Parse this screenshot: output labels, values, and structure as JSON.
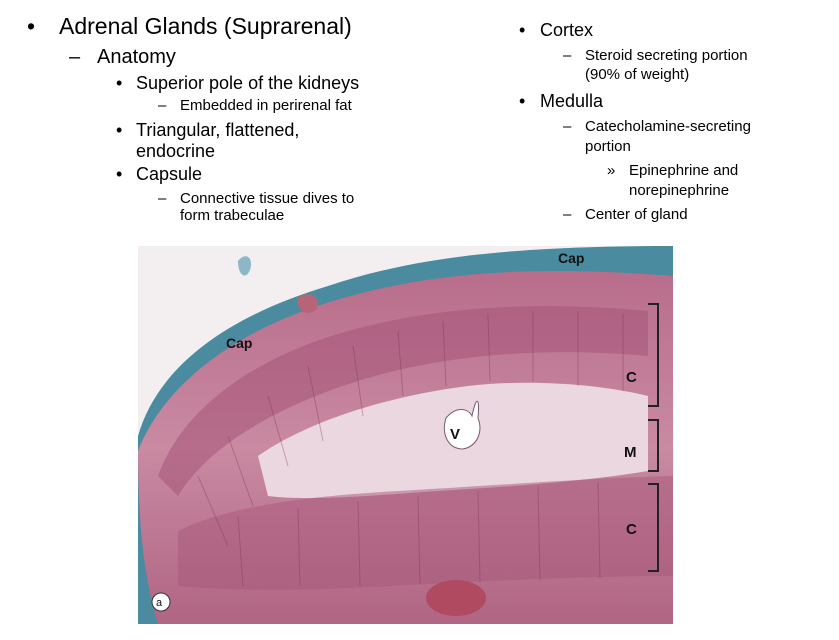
{
  "left": {
    "title": "Adrenal Glands (Suprarenal)",
    "anatomy": "Anatomy",
    "superior": "Superior pole of the kidneys",
    "embedded": "Embedded in perirenal fat",
    "triangular_1": "Triangular, flattened,",
    "triangular_2": "endocrine",
    "capsule": "Capsule",
    "connective_1": "Connective tissue dives to",
    "connective_2": "form trabeculae"
  },
  "right": {
    "cortex": "Cortex",
    "steroid_1": "Steroid secreting portion",
    "steroid_2": "(90% of weight)",
    "medulla": "Medulla",
    "catechol_1": "Catecholamine-secreting",
    "catechol_2": "portion",
    "epi_1": "Epinephrine and",
    "epi_2": "norepinephrine",
    "center": "Center of gland"
  },
  "bullets": {
    "dot": "•",
    "dash": "–",
    "chevron": "»"
  },
  "image_labels": {
    "cap_top": "Cap",
    "cap_left": "Cap",
    "vein": "V",
    "cortex_top": "C",
    "medulla": "M",
    "cortex_bottom": "C",
    "panel": "a"
  },
  "colors": {
    "tissue_pink": "#c57c97",
    "tissue_dark": "#8d3d5f",
    "medulla_light": "#ead7e0",
    "capsule_blue": "#3d7f95"
  }
}
